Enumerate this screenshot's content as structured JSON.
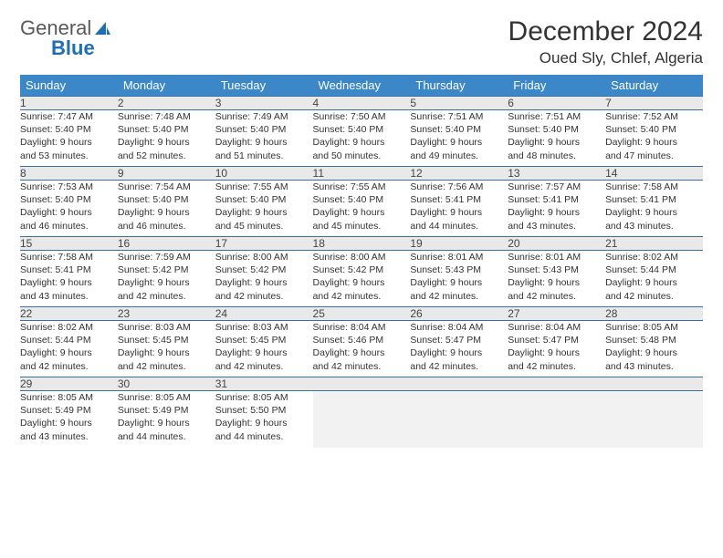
{
  "logo": {
    "text1": "General",
    "text2": "Blue"
  },
  "header": {
    "month": "December 2024",
    "location": "Oued Sly, Chlef, Algeria"
  },
  "colors": {
    "header_bg": "#3b87c8",
    "header_text": "#ffffff",
    "daynum_bg": "#e9e9e9",
    "border": "#3b6ea5",
    "logo_gray": "#595959",
    "logo_blue": "#1f6fb2"
  },
  "columns": [
    "Sunday",
    "Monday",
    "Tuesday",
    "Wednesday",
    "Thursday",
    "Friday",
    "Saturday"
  ],
  "weeks": [
    [
      {
        "day": "1",
        "sunrise": "Sunrise: 7:47 AM",
        "sunset": "Sunset: 5:40 PM",
        "dl1": "Daylight: 9 hours",
        "dl2": "and 53 minutes."
      },
      {
        "day": "2",
        "sunrise": "Sunrise: 7:48 AM",
        "sunset": "Sunset: 5:40 PM",
        "dl1": "Daylight: 9 hours",
        "dl2": "and 52 minutes."
      },
      {
        "day": "3",
        "sunrise": "Sunrise: 7:49 AM",
        "sunset": "Sunset: 5:40 PM",
        "dl1": "Daylight: 9 hours",
        "dl2": "and 51 minutes."
      },
      {
        "day": "4",
        "sunrise": "Sunrise: 7:50 AM",
        "sunset": "Sunset: 5:40 PM",
        "dl1": "Daylight: 9 hours",
        "dl2": "and 50 minutes."
      },
      {
        "day": "5",
        "sunrise": "Sunrise: 7:51 AM",
        "sunset": "Sunset: 5:40 PM",
        "dl1": "Daylight: 9 hours",
        "dl2": "and 49 minutes."
      },
      {
        "day": "6",
        "sunrise": "Sunrise: 7:51 AM",
        "sunset": "Sunset: 5:40 PM",
        "dl1": "Daylight: 9 hours",
        "dl2": "and 48 minutes."
      },
      {
        "day": "7",
        "sunrise": "Sunrise: 7:52 AM",
        "sunset": "Sunset: 5:40 PM",
        "dl1": "Daylight: 9 hours",
        "dl2": "and 47 minutes."
      }
    ],
    [
      {
        "day": "8",
        "sunrise": "Sunrise: 7:53 AM",
        "sunset": "Sunset: 5:40 PM",
        "dl1": "Daylight: 9 hours",
        "dl2": "and 46 minutes."
      },
      {
        "day": "9",
        "sunrise": "Sunrise: 7:54 AM",
        "sunset": "Sunset: 5:40 PM",
        "dl1": "Daylight: 9 hours",
        "dl2": "and 46 minutes."
      },
      {
        "day": "10",
        "sunrise": "Sunrise: 7:55 AM",
        "sunset": "Sunset: 5:40 PM",
        "dl1": "Daylight: 9 hours",
        "dl2": "and 45 minutes."
      },
      {
        "day": "11",
        "sunrise": "Sunrise: 7:55 AM",
        "sunset": "Sunset: 5:40 PM",
        "dl1": "Daylight: 9 hours",
        "dl2": "and 45 minutes."
      },
      {
        "day": "12",
        "sunrise": "Sunrise: 7:56 AM",
        "sunset": "Sunset: 5:41 PM",
        "dl1": "Daylight: 9 hours",
        "dl2": "and 44 minutes."
      },
      {
        "day": "13",
        "sunrise": "Sunrise: 7:57 AM",
        "sunset": "Sunset: 5:41 PM",
        "dl1": "Daylight: 9 hours",
        "dl2": "and 43 minutes."
      },
      {
        "day": "14",
        "sunrise": "Sunrise: 7:58 AM",
        "sunset": "Sunset: 5:41 PM",
        "dl1": "Daylight: 9 hours",
        "dl2": "and 43 minutes."
      }
    ],
    [
      {
        "day": "15",
        "sunrise": "Sunrise: 7:58 AM",
        "sunset": "Sunset: 5:41 PM",
        "dl1": "Daylight: 9 hours",
        "dl2": "and 43 minutes."
      },
      {
        "day": "16",
        "sunrise": "Sunrise: 7:59 AM",
        "sunset": "Sunset: 5:42 PM",
        "dl1": "Daylight: 9 hours",
        "dl2": "and 42 minutes."
      },
      {
        "day": "17",
        "sunrise": "Sunrise: 8:00 AM",
        "sunset": "Sunset: 5:42 PM",
        "dl1": "Daylight: 9 hours",
        "dl2": "and 42 minutes."
      },
      {
        "day": "18",
        "sunrise": "Sunrise: 8:00 AM",
        "sunset": "Sunset: 5:42 PM",
        "dl1": "Daylight: 9 hours",
        "dl2": "and 42 minutes."
      },
      {
        "day": "19",
        "sunrise": "Sunrise: 8:01 AM",
        "sunset": "Sunset: 5:43 PM",
        "dl1": "Daylight: 9 hours",
        "dl2": "and 42 minutes."
      },
      {
        "day": "20",
        "sunrise": "Sunrise: 8:01 AM",
        "sunset": "Sunset: 5:43 PM",
        "dl1": "Daylight: 9 hours",
        "dl2": "and 42 minutes."
      },
      {
        "day": "21",
        "sunrise": "Sunrise: 8:02 AM",
        "sunset": "Sunset: 5:44 PM",
        "dl1": "Daylight: 9 hours",
        "dl2": "and 42 minutes."
      }
    ],
    [
      {
        "day": "22",
        "sunrise": "Sunrise: 8:02 AM",
        "sunset": "Sunset: 5:44 PM",
        "dl1": "Daylight: 9 hours",
        "dl2": "and 42 minutes."
      },
      {
        "day": "23",
        "sunrise": "Sunrise: 8:03 AM",
        "sunset": "Sunset: 5:45 PM",
        "dl1": "Daylight: 9 hours",
        "dl2": "and 42 minutes."
      },
      {
        "day": "24",
        "sunrise": "Sunrise: 8:03 AM",
        "sunset": "Sunset: 5:45 PM",
        "dl1": "Daylight: 9 hours",
        "dl2": "and 42 minutes."
      },
      {
        "day": "25",
        "sunrise": "Sunrise: 8:04 AM",
        "sunset": "Sunset: 5:46 PM",
        "dl1": "Daylight: 9 hours",
        "dl2": "and 42 minutes."
      },
      {
        "day": "26",
        "sunrise": "Sunrise: 8:04 AM",
        "sunset": "Sunset: 5:47 PM",
        "dl1": "Daylight: 9 hours",
        "dl2": "and 42 minutes."
      },
      {
        "day": "27",
        "sunrise": "Sunrise: 8:04 AM",
        "sunset": "Sunset: 5:47 PM",
        "dl1": "Daylight: 9 hours",
        "dl2": "and 42 minutes."
      },
      {
        "day": "28",
        "sunrise": "Sunrise: 8:05 AM",
        "sunset": "Sunset: 5:48 PM",
        "dl1": "Daylight: 9 hours",
        "dl2": "and 43 minutes."
      }
    ],
    [
      {
        "day": "29",
        "sunrise": "Sunrise: 8:05 AM",
        "sunset": "Sunset: 5:49 PM",
        "dl1": "Daylight: 9 hours",
        "dl2": "and 43 minutes."
      },
      {
        "day": "30",
        "sunrise": "Sunrise: 8:05 AM",
        "sunset": "Sunset: 5:49 PM",
        "dl1": "Daylight: 9 hours",
        "dl2": "and 44 minutes."
      },
      {
        "day": "31",
        "sunrise": "Sunrise: 8:05 AM",
        "sunset": "Sunset: 5:50 PM",
        "dl1": "Daylight: 9 hours",
        "dl2": "and 44 minutes."
      },
      null,
      null,
      null,
      null
    ]
  ]
}
